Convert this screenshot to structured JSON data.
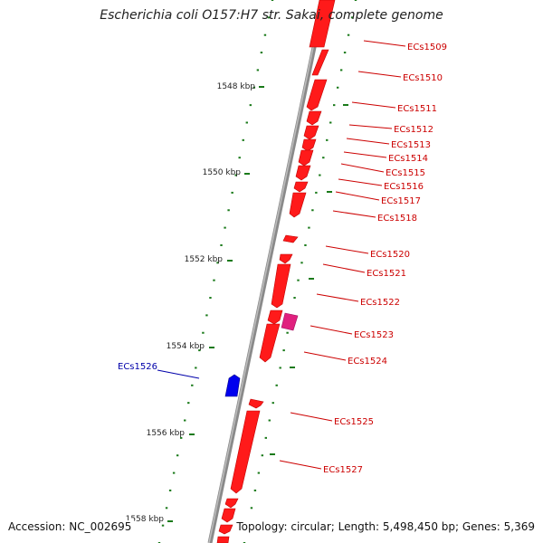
{
  "title": "Escherichia coli O157:H7 str. Sakai, complete genome",
  "accession": "Accession: NC_002695",
  "summary": "Topology: circular; Length: 5,498,450 bp; Genes: 5,369",
  "colors": {
    "backbone": "#888888",
    "forward_gene": "#ff0000",
    "reverse_gene": "#0000ff",
    "special_gene": "#e91e8c",
    "tick": "#1a7a1a",
    "label_red": "#cc0000",
    "label_blue": "#0000aa"
  },
  "kbp_labels": [
    "1548 kbp",
    "1550 kbp",
    "1552 kbp",
    "1554 kbp",
    "1556 kbp",
    "1558 kbp"
  ],
  "genes": [
    {
      "name": "ECs1509"
    },
    {
      "name": "ECs1510"
    },
    {
      "name": "ECs1511"
    },
    {
      "name": "ECs1512"
    },
    {
      "name": "ECs1513"
    },
    {
      "name": "ECs1514"
    },
    {
      "name": "ECs1515"
    },
    {
      "name": "ECs1516"
    },
    {
      "name": "ECs1517"
    },
    {
      "name": "ECs1518"
    },
    {
      "name": "ECs1520"
    },
    {
      "name": "ECs1521"
    },
    {
      "name": "ECs1522"
    },
    {
      "name": "ECs1523"
    },
    {
      "name": "ECs1524"
    },
    {
      "name": "ECs1525"
    },
    {
      "name": "ECs1526"
    },
    {
      "name": "ECs1527"
    }
  ]
}
